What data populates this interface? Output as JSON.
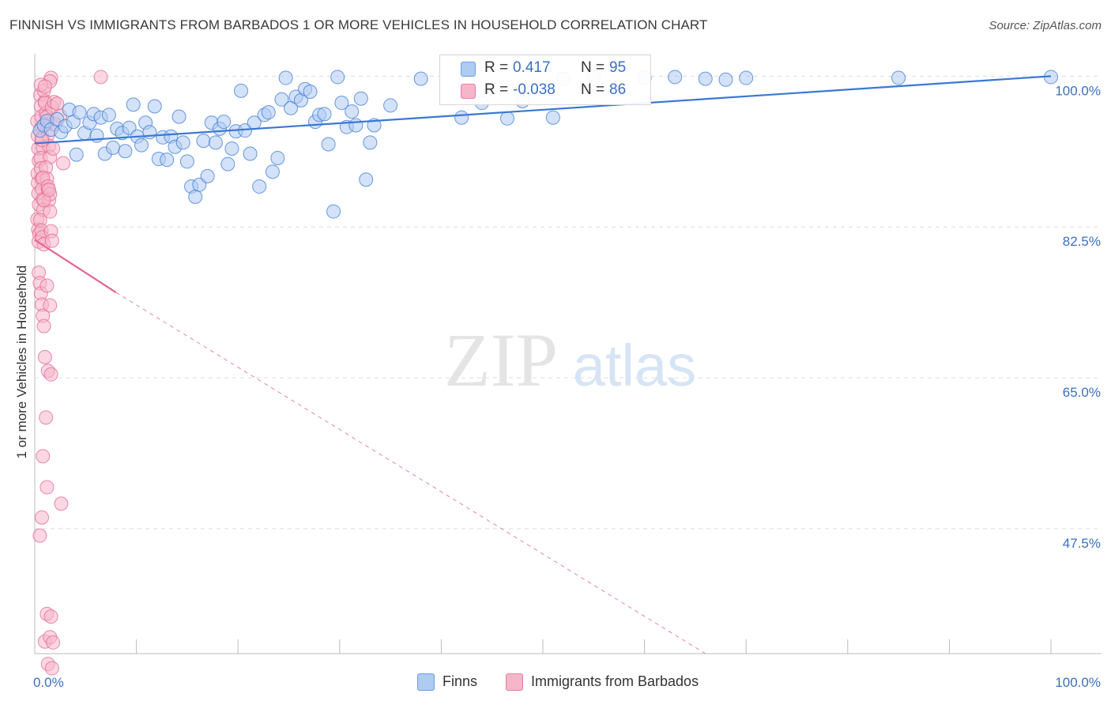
{
  "title": "FINNISH VS IMMIGRANTS FROM BARBADOS 1 OR MORE VEHICLES IN HOUSEHOLD CORRELATION CHART",
  "source": "Source: ZipAtlas.com",
  "watermark": {
    "zip": "ZIP",
    "atlas": "atlas"
  },
  "colors": {
    "blue": "#3a78d4",
    "blue_fill": "#aecbf2",
    "pink": "#e2668f",
    "pink_fill": "#f5b6ca",
    "axis_text": "#3a6fc4"
  },
  "legend": {
    "series": [
      {
        "r_label": "R =",
        "r_value": "0.417",
        "n_label": "N =",
        "n_value": "95"
      },
      {
        "r_label": "R =",
        "r_value": "-0.038",
        "n_label": "N =",
        "n_value": "86"
      }
    ]
  },
  "bottom_legend": [
    "Finns",
    "Immigrants from Barbados"
  ],
  "chart_data": {
    "type": "scatter",
    "title": "FINNISH VS IMMIGRANTS FROM BARBADOS 1 OR MORE VEHICLES IN HOUSEHOLD CORRELATION CHART",
    "xlabel": "",
    "ylabel": "1 or more Vehicles in Household",
    "xlim": [
      0,
      100
    ],
    "ylim": [
      33.0,
      101.5
    ],
    "x_tick_labels": [
      "0.0%",
      "100.0%"
    ],
    "y_ticks": [
      100.0,
      82.5,
      65.0,
      47.5
    ],
    "y_tick_labels": [
      "100.0%",
      "82.5%",
      "65.0%",
      "47.5%"
    ],
    "grid": true,
    "series": [
      {
        "name": "Finns",
        "r": 0.417,
        "n": 95,
        "trend": {
          "x": [
            0,
            100
          ],
          "y": [
            92.2,
            100.0
          ],
          "style": "solid"
        },
        "points": [
          [
            0.5,
            93.7
          ],
          [
            0.9,
            94.3
          ],
          [
            1.2,
            94.8
          ],
          [
            1.6,
            93.8
          ],
          [
            2.2,
            95.0
          ],
          [
            2.6,
            93.5
          ],
          [
            3.0,
            94.2
          ],
          [
            3.4,
            96.1
          ],
          [
            3.8,
            94.7
          ],
          [
            4.1,
            90.9
          ],
          [
            4.4,
            95.8
          ],
          [
            4.9,
            93.4
          ],
          [
            5.4,
            94.6
          ],
          [
            5.8,
            95.6
          ],
          [
            6.1,
            93.1
          ],
          [
            6.5,
            95.2
          ],
          [
            6.9,
            91.0
          ],
          [
            7.3,
            95.5
          ],
          [
            7.7,
            91.7
          ],
          [
            8.1,
            93.9
          ],
          [
            8.6,
            93.4
          ],
          [
            8.9,
            91.3
          ],
          [
            9.3,
            94.0
          ],
          [
            9.7,
            96.7
          ],
          [
            10.1,
            93.0
          ],
          [
            10.5,
            92.0
          ],
          [
            10.9,
            94.6
          ],
          [
            11.3,
            93.5
          ],
          [
            11.8,
            96.5
          ],
          [
            12.2,
            90.4
          ],
          [
            12.6,
            92.9
          ],
          [
            13.0,
            90.3
          ],
          [
            13.4,
            93.0
          ],
          [
            13.8,
            91.8
          ],
          [
            14.2,
            95.3
          ],
          [
            14.6,
            92.3
          ],
          [
            15.0,
            90.1
          ],
          [
            15.4,
            87.2
          ],
          [
            15.8,
            86.0
          ],
          [
            16.2,
            87.4
          ],
          [
            16.6,
            92.5
          ],
          [
            17.0,
            88.4
          ],
          [
            17.4,
            94.6
          ],
          [
            17.8,
            92.3
          ],
          [
            18.2,
            93.9
          ],
          [
            18.6,
            94.7
          ],
          [
            19.0,
            89.8
          ],
          [
            19.4,
            91.6
          ],
          [
            19.8,
            93.6
          ],
          [
            20.3,
            98.3
          ],
          [
            20.7,
            93.7
          ],
          [
            21.2,
            91.0
          ],
          [
            21.6,
            94.6
          ],
          [
            22.1,
            87.2
          ],
          [
            22.6,
            95.5
          ],
          [
            23.0,
            95.8
          ],
          [
            23.4,
            88.9
          ],
          [
            23.9,
            90.5
          ],
          [
            24.3,
            97.3
          ],
          [
            24.7,
            99.8
          ],
          [
            25.2,
            96.3
          ],
          [
            25.7,
            97.6
          ],
          [
            26.2,
            97.2
          ],
          [
            26.6,
            98.5
          ],
          [
            27.1,
            98.2
          ],
          [
            27.6,
            94.7
          ],
          [
            28.0,
            95.5
          ],
          [
            28.5,
            95.6
          ],
          [
            28.9,
            92.1
          ],
          [
            29.4,
            84.3
          ],
          [
            29.8,
            99.9
          ],
          [
            30.2,
            96.9
          ],
          [
            30.7,
            94.1
          ],
          [
            31.2,
            95.9
          ],
          [
            31.6,
            94.3
          ],
          [
            32.1,
            97.4
          ],
          [
            32.6,
            88.0
          ],
          [
            33.0,
            92.3
          ],
          [
            33.4,
            94.3
          ],
          [
            35.0,
            96.6
          ],
          [
            38.0,
            99.7
          ],
          [
            42.0,
            95.2
          ],
          [
            44.0,
            96.9
          ],
          [
            46.5,
            95.1
          ],
          [
            48.0,
            97.1
          ],
          [
            51.0,
            95.2
          ],
          [
            52.0,
            99.7
          ],
          [
            55.0,
            99.9
          ],
          [
            60.0,
            99.8
          ],
          [
            63.0,
            99.9
          ],
          [
            66.0,
            99.7
          ],
          [
            68.0,
            99.6
          ],
          [
            70.0,
            99.8
          ],
          [
            85.0,
            99.8
          ],
          [
            100.0,
            99.9
          ]
        ]
      },
      {
        "name": "Immigrants from Barbados",
        "r": -0.038,
        "n": 86,
        "trend": {
          "x": [
            0,
            8.0,
            66.0
          ],
          "y": [
            81.0,
            74.9,
            33.0
          ],
          "style": "solid-then-dashed"
        },
        "points": [
          [
            0.25,
            94.8
          ],
          [
            0.3,
            93.1
          ],
          [
            0.35,
            91.6
          ],
          [
            0.4,
            90.2
          ],
          [
            0.28,
            88.7
          ],
          [
            0.32,
            87.6
          ],
          [
            0.36,
            86.4
          ],
          [
            0.42,
            85.1
          ],
          [
            0.26,
            83.4
          ],
          [
            0.34,
            82.2
          ],
          [
            0.45,
            81.7
          ],
          [
            0.38,
            80.8
          ],
          [
            0.55,
            97.8
          ],
          [
            0.6,
            96.5
          ],
          [
            0.65,
            95.3
          ],
          [
            0.7,
            94.1
          ],
          [
            0.75,
            92.9
          ],
          [
            0.8,
            91.7
          ],
          [
            0.58,
            90.5
          ],
          [
            0.62,
            89.3
          ],
          [
            0.68,
            88.1
          ],
          [
            0.72,
            86.9
          ],
          [
            0.78,
            85.7
          ],
          [
            0.84,
            84.5
          ],
          [
            0.52,
            83.3
          ],
          [
            0.66,
            82.1
          ],
          [
            0.74,
            81.3
          ],
          [
            0.88,
            80.5
          ],
          [
            1.0,
            97.1
          ],
          [
            1.1,
            95.7
          ],
          [
            1.2,
            94.4
          ],
          [
            1.3,
            93.2
          ],
          [
            1.4,
            91.9
          ],
          [
            1.5,
            90.6
          ],
          [
            1.1,
            89.4
          ],
          [
            1.2,
            88.1
          ],
          [
            1.3,
            86.9
          ],
          [
            1.4,
            85.6
          ],
          [
            1.5,
            84.3
          ],
          [
            1.6,
            82.0
          ],
          [
            1.7,
            80.9
          ],
          [
            0.9,
            98.3
          ],
          [
            1.0,
            96.9
          ],
          [
            1.2,
            95.3
          ],
          [
            0.7,
            92.6
          ],
          [
            0.8,
            88.2
          ],
          [
            1.3,
            87.2
          ],
          [
            1.5,
            86.3
          ],
          [
            1.7,
            96.4
          ],
          [
            1.9,
            97.0
          ],
          [
            2.2,
            96.8
          ],
          [
            2.5,
            95.4
          ],
          [
            2.8,
            89.9
          ],
          [
            1.8,
            91.6
          ],
          [
            1.6,
            99.8
          ],
          [
            1.5,
            99.4
          ],
          [
            0.4,
            77.2
          ],
          [
            0.5,
            76.0
          ],
          [
            0.6,
            74.8
          ],
          [
            0.7,
            73.5
          ],
          [
            0.8,
            72.2
          ],
          [
            0.9,
            71.0
          ],
          [
            1.2,
            75.7
          ],
          [
            1.5,
            73.4
          ],
          [
            1.0,
            67.4
          ],
          [
            1.3,
            65.8
          ],
          [
            1.6,
            65.4
          ],
          [
            1.1,
            60.4
          ],
          [
            0.8,
            55.9
          ],
          [
            1.2,
            52.3
          ],
          [
            0.7,
            48.8
          ],
          [
            2.6,
            50.4
          ],
          [
            0.5,
            46.7
          ],
          [
            1.2,
            37.6
          ],
          [
            1.6,
            37.3
          ],
          [
            1.0,
            34.4
          ],
          [
            1.5,
            34.9
          ],
          [
            1.8,
            34.3
          ],
          [
            1.3,
            31.8
          ],
          [
            1.7,
            31.3
          ],
          [
            6.5,
            99.9
          ],
          [
            0.6,
            99.0
          ],
          [
            1.0,
            98.8
          ],
          [
            2.0,
            94.4
          ],
          [
            0.9,
            85.6
          ],
          [
            1.4,
            86.8
          ]
        ]
      }
    ]
  }
}
